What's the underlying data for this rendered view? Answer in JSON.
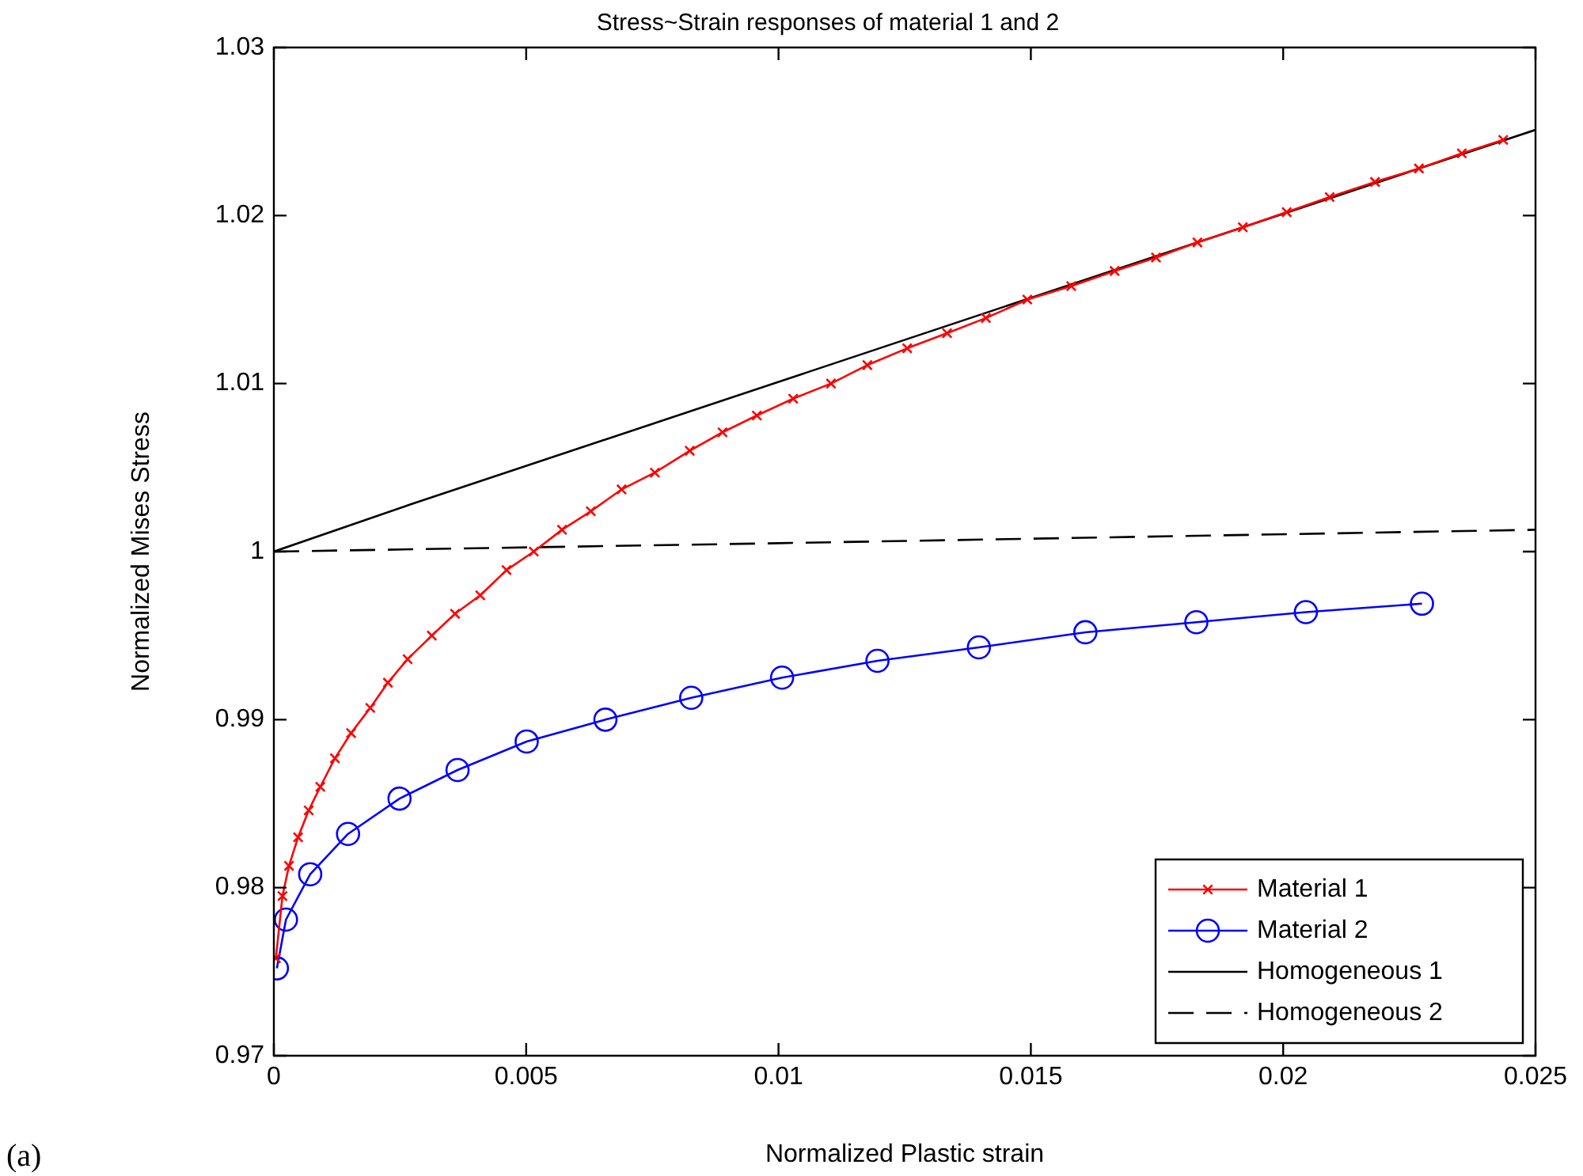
{
  "chart_data": {
    "type": "line",
    "title": "Stress~Strain responses of material 1 and 2",
    "xlabel": "Normalized Plastic strain",
    "ylabel": "Normalized Mises Stress",
    "xlim": [
      0,
      0.025
    ],
    "xticks": [
      0,
      0.005,
      0.01,
      0.015,
      0.02,
      0.025
    ],
    "ylim": [
      0.97,
      1.03
    ],
    "yticks": [
      0.97,
      0.98,
      0.99,
      1,
      1.01,
      1.02,
      1.03
    ],
    "grid": false,
    "legend": "bottom right",
    "annotations": [
      "(a)"
    ],
    "series": [
      {
        "name": "Material 1",
        "color": "#ff0000",
        "marker": "cross",
        "line_style": "solid",
        "x": [
          4e-05,
          0.00017,
          0.0003,
          0.00048,
          0.00069,
          0.00092,
          0.00121,
          0.00153,
          0.00191,
          0.00226,
          0.00265,
          0.00313,
          0.00359,
          0.00409,
          0.00461,
          0.00515,
          0.00571,
          0.00628,
          0.00689,
          0.00755,
          0.00824,
          0.00889,
          0.00957,
          0.01029,
          0.01104,
          0.01176,
          0.01255,
          0.01334,
          0.01411,
          0.01493,
          0.0158,
          0.01666,
          0.01748,
          0.0183,
          0.0192,
          0.02007,
          0.02092,
          0.02182,
          0.02269,
          0.02354,
          0.02436
        ],
        "values": [
          0.9758,
          0.9795,
          0.9813,
          0.983,
          0.9846,
          0.986,
          0.9877,
          0.9892,
          0.9907,
          0.9922,
          0.9936,
          0.995,
          0.9963,
          0.9974,
          0.9989,
          1.0,
          1.0013,
          1.0024,
          1.0037,
          1.0047,
          1.006,
          1.0071,
          1.0081,
          1.0091,
          1.01,
          1.0111,
          1.0121,
          1.013,
          1.0139,
          1.015,
          1.0158,
          1.0167,
          1.0175,
          1.0184,
          1.0193,
          1.0202,
          1.0211,
          1.022,
          1.0228,
          1.0237,
          1.0245
        ]
      },
      {
        "name": "Material 2",
        "color": "#0000ff",
        "marker": "circle",
        "line_style": "solid",
        "x": [
          6e-05,
          0.00024,
          0.00072,
          0.00147,
          0.00249,
          0.00364,
          0.00501,
          0.00657,
          0.00827,
          0.01007,
          0.01196,
          0.01397,
          0.01608,
          0.01828,
          0.02045,
          0.02275
        ],
        "values": [
          0.9752,
          0.9781,
          0.9808,
          0.9832,
          0.9853,
          0.987,
          0.9887,
          0.99,
          0.9913,
          0.9925,
          0.9935,
          0.9943,
          0.9952,
          0.9958,
          0.9964,
          0.9969
        ]
      },
      {
        "name": "Homogeneous 1",
        "color": "#000000",
        "marker": "none",
        "line_style": "solid",
        "x": [
          0,
          0.0027,
          0.025
        ],
        "values": [
          1.0,
          1.0028,
          1.0251
        ]
      },
      {
        "name": "Homogeneous 2",
        "color": "#000000",
        "marker": "none",
        "line_style": "dashed",
        "x": [
          0,
          0.01,
          0.025
        ],
        "values": [
          1.0,
          1.0005,
          1.0013
        ]
      }
    ]
  }
}
